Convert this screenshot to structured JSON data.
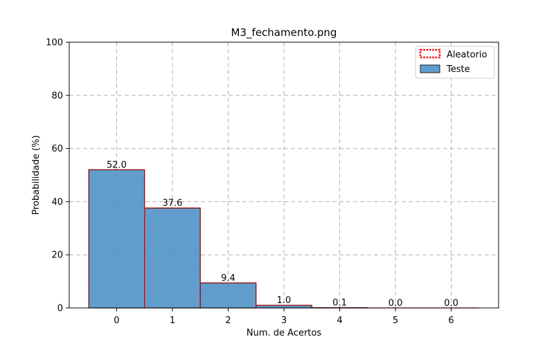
{
  "chart_data": {
    "type": "bar",
    "title": "M3_fechamento.png",
    "xlabel": "Num. de Acertos",
    "ylabel": "Probabilidade (%)",
    "categories": [
      "0",
      "1",
      "2",
      "3",
      "4",
      "5",
      "6"
    ],
    "x": [
      0,
      1,
      2,
      3,
      4,
      5,
      6
    ],
    "xlim": [
      -0.85,
      6.85
    ],
    "ylim": [
      0,
      100
    ],
    "yticks": [
      0,
      20,
      40,
      60,
      80,
      100
    ],
    "grid": true,
    "legend_position": "top-right",
    "series": [
      {
        "name": "Aleatorio",
        "style": "outline-dotted",
        "color": "#ff0000",
        "values": [
          52.0,
          37.6,
          9.4,
          1.0,
          0.1,
          0.0,
          0.0
        ]
      },
      {
        "name": "Teste",
        "style": "filled",
        "color": "#4a8fc4",
        "edge_color": "#1a1a1a",
        "values": [
          52.0,
          37.6,
          9.4,
          1.0,
          0.1,
          0.0,
          0.0
        ]
      }
    ],
    "data_labels": [
      "52.0",
      "37.6",
      "9.4",
      "1.0",
      "0.1",
      "0.0",
      "0.0"
    ]
  }
}
